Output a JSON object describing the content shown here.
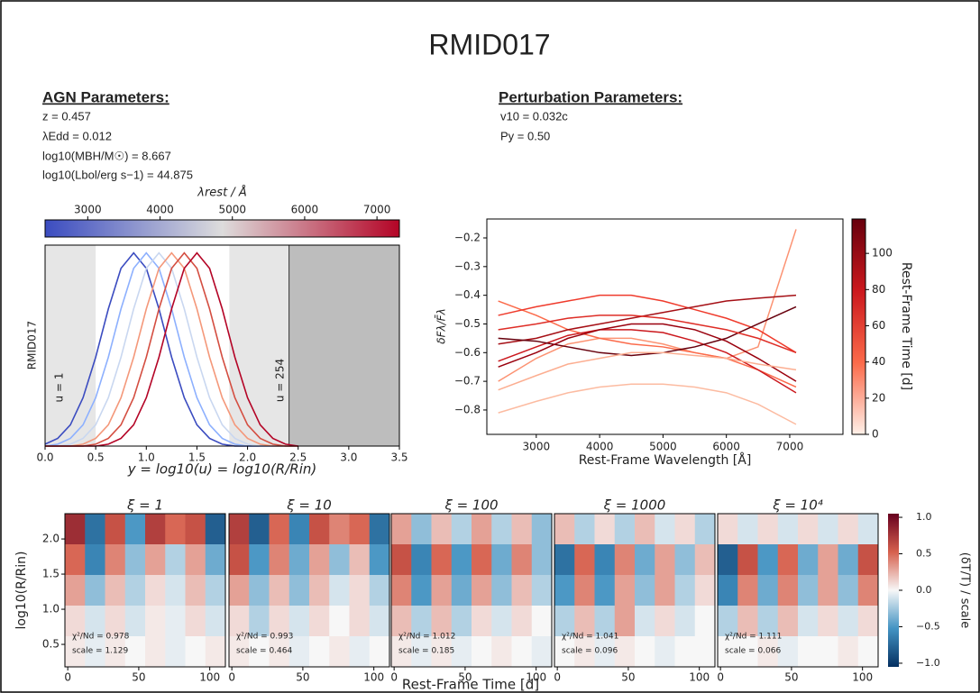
{
  "header": {
    "title": "RMID017"
  },
  "agn_parameters": {
    "heading": "AGN Parameters:",
    "lines": [
      "z = 0.457",
      "λEdd = 0.012",
      "log10(MBH/M☉) = 8.667",
      "log10(Lbol/erg s−1) = 44.875"
    ]
  },
  "perturbation_parameters": {
    "heading": "Perturbation Parameters:",
    "lines": [
      "v10 = 0.032c",
      "Py = 0.50"
    ]
  },
  "chart_data": [
    {
      "type": "line",
      "ylabel": "RMID017",
      "xlabel": "y = log10(u) = log10(R/Rin)",
      "x": [
        0,
        0.125,
        0.25,
        0.375,
        0.5,
        0.625,
        0.75,
        0.875,
        1,
        1.125,
        1.25,
        1.375,
        1.5,
        1.625,
        1.75,
        1.875,
        2,
        2.125,
        2.25,
        2.375,
        2.5
      ],
      "xlim": [
        0,
        3.5
      ],
      "ylim": [
        0,
        1.04
      ],
      "xticks": [
        {
          "value": 0,
          "label": "0.0"
        },
        0.5,
        {
          "value": 1,
          "label": "1.0"
        },
        1.5,
        {
          "value": 2,
          "label": "2.0"
        },
        2.5,
        {
          "value": 3,
          "label": "3.0"
        },
        3.5
      ],
      "series": [
        {
          "color": "#3b4cc0",
          "values": [
            0.01,
            0.04,
            0.11,
            0.25,
            0.46,
            0.71,
            0.92,
            1,
            0.92,
            0.71,
            0.46,
            0.25,
            0.11,
            0.04,
            0.01,
            0,
            0,
            0,
            0,
            0,
            0
          ]
        },
        {
          "color": "#8db0fe",
          "values": [
            0,
            0.01,
            0.04,
            0.11,
            0.25,
            0.46,
            0.71,
            0.92,
            1,
            0.92,
            0.71,
            0.46,
            0.25,
            0.11,
            0.04,
            0.01,
            0,
            0,
            0,
            0,
            0
          ]
        },
        {
          "color": "#c9d7f0",
          "values": [
            0,
            0,
            0.01,
            0.04,
            0.11,
            0.25,
            0.46,
            0.71,
            0.92,
            1,
            0.92,
            0.71,
            0.46,
            0.25,
            0.11,
            0.04,
            0.01,
            0,
            0,
            0,
            0
          ]
        },
        {
          "color": "#f4987a",
          "values": [
            0,
            0,
            0,
            0.01,
            0.04,
            0.11,
            0.25,
            0.46,
            0.71,
            0.92,
            1,
            0.92,
            0.71,
            0.46,
            0.25,
            0.11,
            0.04,
            0.01,
            0,
            0,
            0
          ]
        },
        {
          "color": "#d44e41",
          "values": [
            0,
            0,
            0,
            0,
            0.01,
            0.04,
            0.11,
            0.25,
            0.46,
            0.71,
            0.92,
            1,
            0.92,
            0.71,
            0.46,
            0.25,
            0.11,
            0.04,
            0.01,
            0,
            0
          ]
        },
        {
          "color": "#b40426",
          "values": [
            0,
            0,
            0,
            0,
            0,
            0.01,
            0.04,
            0.11,
            0.25,
            0.46,
            0.71,
            0.92,
            1,
            0.92,
            0.71,
            0.46,
            0.25,
            0.11,
            0.04,
            0.01,
            0
          ]
        }
      ],
      "shaded_regions": [
        {
          "range": [
            0,
            0.5
          ],
          "color": "#e6e6e6"
        },
        {
          "range": [
            1.82,
            2.41
          ],
          "color": "#e6e6e6"
        },
        {
          "range": [
            2.41,
            3.5
          ],
          "color": "#bdbdbd"
        }
      ],
      "annotations": [
        "u = 1",
        "u = 254"
      ],
      "colorbar": {
        "label": "λrest / Å",
        "lim": [
          2410,
          7310
        ],
        "ticks": [
          3000,
          4000,
          5000,
          6000,
          7000
        ],
        "colors": [
          "#3b4cc0",
          "#dddcdc",
          "#b40426"
        ]
      }
    },
    {
      "type": "line",
      "xlabel": "Rest-Frame Wavelength [Å]",
      "ylabel": "δFλ/F̄λ",
      "x": [
        2400,
        3000,
        3500,
        4000,
        4500,
        5000,
        5500,
        6000,
        6500,
        7100
      ],
      "xlim": [
        2220,
        7840
      ],
      "ylim": [
        -0.885,
        -0.134
      ],
      "xticks": [
        3000,
        4000,
        5000,
        6000,
        7000
      ],
      "yticks": [
        {
          "value": -0.8,
          "label": "−0.8"
        },
        {
          "value": -0.7,
          "label": "−0.7"
        },
        {
          "value": -0.6,
          "label": "−0.6"
        },
        {
          "value": -0.5,
          "label": "−0.5"
        },
        {
          "value": -0.4,
          "label": "−0.4"
        },
        {
          "value": -0.3,
          "label": "−0.3"
        },
        {
          "value": -0.2,
          "label": "−0.2"
        }
      ],
      "series": [
        {
          "color": "#fcbba1",
          "values": [
            -0.81,
            -0.77,
            -0.74,
            -0.72,
            -0.71,
            -0.71,
            -0.72,
            -0.74,
            -0.78,
            -0.85
          ]
        },
        {
          "color": "#fc9272",
          "values": [
            -0.7,
            -0.62,
            -0.57,
            -0.55,
            -0.55,
            -0.57,
            -0.6,
            -0.62,
            -0.58,
            -0.17
          ]
        },
        {
          "color": "#fb6a4a",
          "values": [
            -0.42,
            -0.47,
            -0.52,
            -0.55,
            -0.57,
            -0.58,
            -0.6,
            -0.62,
            -0.66,
            -0.72
          ]
        },
        {
          "color": "#ef3b2c",
          "values": [
            -0.47,
            -0.44,
            -0.42,
            -0.4,
            -0.4,
            -0.42,
            -0.45,
            -0.48,
            -0.52,
            -0.6
          ]
        },
        {
          "color": "#cb181d",
          "values": [
            -0.63,
            -0.58,
            -0.54,
            -0.52,
            -0.52,
            -0.53,
            -0.56,
            -0.6,
            -0.66,
            -0.74
          ]
        },
        {
          "color": "#a50f15",
          "values": [
            -0.57,
            -0.55,
            -0.52,
            -0.5,
            -0.48,
            -0.46,
            -0.44,
            -0.42,
            -0.41,
            -0.4
          ]
        },
        {
          "color": "#67000d",
          "values": [
            -0.55,
            -0.56,
            -0.58,
            -0.6,
            -0.61,
            -0.6,
            -0.58,
            -0.55,
            -0.5,
            -0.44
          ]
        },
        {
          "color": "#99000d",
          "values": [
            -0.65,
            -0.6,
            -0.55,
            -0.52,
            -0.5,
            -0.5,
            -0.52,
            -0.56,
            -0.62,
            -0.7
          ]
        },
        {
          "color": "#fcae91",
          "values": [
            -0.73,
            -0.68,
            -0.64,
            -0.62,
            -0.6,
            -0.6,
            -0.61,
            -0.62,
            -0.64,
            -0.66
          ]
        },
        {
          "color": "#de2d26",
          "values": [
            -0.52,
            -0.5,
            -0.48,
            -0.47,
            -0.47,
            -0.48,
            -0.5,
            -0.52,
            -0.55,
            -0.6
          ]
        }
      ],
      "colorbar": {
        "label": "Rest-Frame Time [d]",
        "lim": [
          0,
          119
        ],
        "ticks": [
          0,
          20,
          40,
          60,
          80,
          100
        ],
        "colors": [
          "#fff0e8",
          "#fb6a4a",
          "#cb181d",
          "#67000d"
        ]
      }
    },
    {
      "type": "heatmap",
      "xlabel": "Rest-Frame Time [d]",
      "ylabel": "log10(R/Rin)",
      "xlim": [
        -2,
        111
      ],
      "ylim": [
        0.18,
        2.36
      ],
      "xticks": [
        0,
        50,
        100
      ],
      "yticks": [
        0.5,
        {
          "value": 1,
          "label": "1.0"
        },
        1.5,
        {
          "value": 2,
          "label": "2.0"
        }
      ],
      "colorbar": {
        "label": "(δT/T) / scale",
        "lim": [
          -1.05,
          1.05
        ],
        "colors": [
          "#053061",
          "#4393c3",
          "#f7f7f7",
          "#d6604d",
          "#67001f"
        ],
        "ticks": [
          {
            "value": 1,
            "label": "1.0"
          },
          0.5,
          {
            "value": 0,
            "label": "0.0"
          },
          {
            "value": -0.5,
            "label": "−0.5"
          },
          {
            "value": -1,
            "label": "−1.0"
          }
        ]
      },
      "panels": [
        {
          "title": "ξ = 1",
          "annotations": [
            "χ²/Nd = 0.978",
            "scale = 1.129"
          ],
          "values": [
            [
              0.8,
              -0.7,
              0.6,
              -0.5,
              0.7,
              0.5,
              0.6,
              -0.8
            ],
            [
              0.5,
              -0.6,
              0.4,
              -0.3,
              0.3,
              -0.2,
              0.3,
              -0.4
            ],
            [
              0.3,
              -0.3,
              0.2,
              -0.2,
              0.1,
              -0.1,
              0.2,
              -0.2
            ],
            [
              0.1,
              -0.1,
              0.1,
              -0.1,
              0.05,
              -0.05,
              0.1,
              -0.1
            ],
            [
              0.05,
              -0.05,
              0.05,
              0,
              0.05,
              -0.05,
              0,
              0.05
            ]
          ]
        },
        {
          "title": "ξ = 10",
          "annotations": [
            "χ²/Nd = 0.993",
            "scale = 0.464"
          ],
          "values": [
            [
              0.7,
              -0.8,
              0.5,
              -0.6,
              0.6,
              0.4,
              0.5,
              -0.7
            ],
            [
              0.6,
              -0.5,
              0.4,
              -0.4,
              0.3,
              -0.3,
              0.2,
              -0.5
            ],
            [
              0.3,
              -0.3,
              0.2,
              -0.3,
              0.2,
              -0.1,
              0.1,
              -0.2
            ],
            [
              0.1,
              -0.2,
              0.1,
              -0.1,
              0.1,
              0,
              0.1,
              -0.1
            ],
            [
              0.05,
              0,
              0.05,
              -0.05,
              0,
              0.05,
              -0.05,
              0
            ]
          ]
        },
        {
          "title": "ξ = 100",
          "annotations": [
            "χ²/Nd = 1.012",
            "scale = 0.185"
          ],
          "values": [
            [
              0.3,
              -0.3,
              0.2,
              -0.2,
              0.3,
              -0.2,
              0.2,
              -0.3
            ],
            [
              0.6,
              -0.6,
              0.5,
              -0.5,
              0.5,
              -0.4,
              0.4,
              -0.3
            ],
            [
              0.4,
              -0.5,
              0.3,
              -0.4,
              0.3,
              -0.3,
              0.2,
              -0.2
            ],
            [
              0.2,
              -0.2,
              0.2,
              -0.2,
              0.1,
              -0.1,
              0.1,
              0
            ],
            [
              0.05,
              -0.05,
              0.05,
              -0.05,
              0,
              0.05,
              0,
              -0.05
            ]
          ]
        },
        {
          "title": "ξ = 1000",
          "annotations": [
            "χ²/Nd = 1.041",
            "scale = 0.096"
          ],
          "values": [
            [
              0.2,
              -0.2,
              0.1,
              -0.2,
              0.2,
              -0.1,
              0.1,
              -0.2
            ],
            [
              -0.7,
              0.5,
              -0.6,
              0.4,
              -0.4,
              0.3,
              -0.3,
              0.2
            ],
            [
              -0.5,
              0.4,
              -0.5,
              0.3,
              -0.3,
              0.3,
              -0.2,
              0.1
            ],
            [
              -0.2,
              0.2,
              -0.2,
              0.3,
              -0.1,
              0.1,
              -0.1,
              0
            ],
            [
              0,
              0.05,
              -0.05,
              0.05,
              0,
              -0.05,
              0,
              0
            ]
          ]
        },
        {
          "title": "ξ = 10⁴",
          "annotations": [
            "χ²/Nd = 1.111",
            "scale = 0.066"
          ],
          "values": [
            [
              0.1,
              -0.1,
              0.1,
              -0.1,
              0.1,
              -0.1,
              0.1,
              -0.1
            ],
            [
              -0.8,
              0.6,
              -0.5,
              0.5,
              -0.4,
              0.3,
              -0.4,
              0.6
            ],
            [
              -0.6,
              0.4,
              -0.4,
              0.4,
              -0.3,
              0.3,
              -0.3,
              0.4
            ],
            [
              -0.2,
              0.2,
              -0.2,
              0.2,
              -0.1,
              0.1,
              -0.1,
              0.1
            ],
            [
              0,
              0,
              0.05,
              -0.05,
              0,
              0,
              0.05,
              0
            ]
          ]
        }
      ]
    }
  ]
}
